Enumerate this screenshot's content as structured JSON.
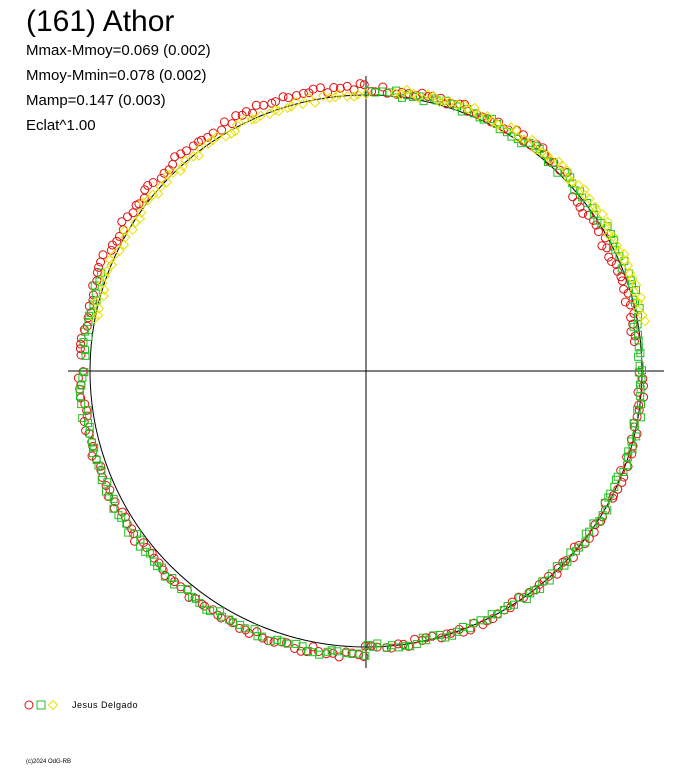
{
  "header": {
    "title": "(161) Athor",
    "stats": [
      "Mmax-Mmoy=0.069 (0.002)",
      "Mmoy-Mmin=0.078 (0.002)",
      "Mamp=0.147 (0.003)",
      "Eclat^1.00"
    ]
  },
  "legend": {
    "observer": "Jesus Delgado",
    "markers": [
      "circle",
      "square",
      "diamond"
    ]
  },
  "credit": "(c)2024 OdG-RB",
  "colors": {
    "circle": "#e01010",
    "square": "#20c020",
    "diamond": "#e8e000",
    "line": "#000000"
  },
  "chart_data": {
    "type": "scatter",
    "coordinate_system": "polar",
    "reference_circle_radius": 1.0,
    "angle_unit": "degrees",
    "radius_unit": "relative brightness",
    "series": [
      {
        "marker": "circle",
        "color": "#e01010",
        "arcs": [
          {
            "angle_start": 180,
            "angle_end": 270,
            "radius": 1.03
          },
          {
            "angle_start": 270,
            "angle_end": 360,
            "radius": 1.0
          },
          {
            "angle_start": 6,
            "angle_end": 40,
            "radius": 0.98
          },
          {
            "angle_start": 45,
            "angle_end": 90,
            "radius": 1.02
          },
          {
            "angle_start": 90,
            "angle_end": 178,
            "radius": 1.03
          }
        ]
      },
      {
        "marker": "square",
        "color": "#20c020",
        "arcs": [
          {
            "angle_start": 180,
            "angle_end": 270,
            "radius": 1.03
          },
          {
            "angle_start": 270,
            "angle_end": 360,
            "radius": 1.0
          },
          {
            "angle_start": 0,
            "angle_end": 10,
            "radius": 0.99
          },
          {
            "angle_start": 10,
            "angle_end": 90,
            "radius": 1.01
          },
          {
            "angle_start": 160,
            "angle_end": 178,
            "radius": 1.02
          }
        ]
      },
      {
        "marker": "diamond",
        "color": "#e8e000",
        "arcs": [
          {
            "angle_start": 10,
            "angle_end": 85,
            "radius": 1.02
          },
          {
            "angle_start": 90,
            "angle_end": 170,
            "radius": 1.0
          }
        ]
      }
    ]
  }
}
